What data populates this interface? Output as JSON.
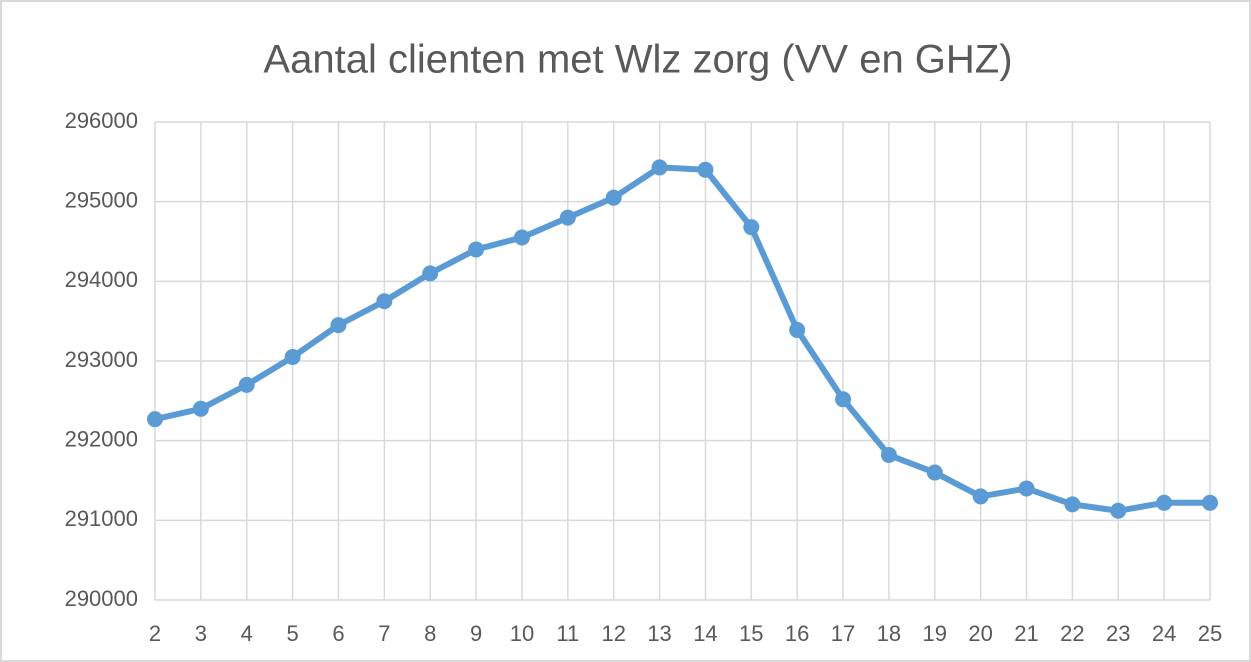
{
  "chart_data": {
    "type": "line",
    "title": "Aantal clienten met Wlz zorg (VV en GHZ)",
    "x": [
      2,
      3,
      4,
      5,
      6,
      7,
      8,
      9,
      10,
      11,
      12,
      13,
      14,
      15,
      16,
      17,
      18,
      19,
      20,
      21,
      22,
      23,
      24,
      25
    ],
    "series": [
      {
        "color": "#5b9bd5",
        "values": [
          292270,
          292400,
          292700,
          293050,
          293450,
          293750,
          294100,
          294400,
          294550,
          294800,
          295050,
          295430,
          295400,
          294680,
          293390,
          292520,
          291820,
          291600,
          291300,
          291400,
          291200,
          291120,
          291220,
          291220
        ]
      }
    ],
    "xlim": [
      2,
      25
    ],
    "xticks": [
      2,
      3,
      4,
      5,
      6,
      7,
      8,
      9,
      10,
      11,
      12,
      13,
      14,
      15,
      16,
      17,
      18,
      19,
      20,
      21,
      22,
      23,
      24,
      25
    ],
    "ylim": [
      290000,
      296000
    ],
    "yticks": [
      290000,
      291000,
      292000,
      293000,
      294000,
      295000,
      296000
    ],
    "grid": true
  }
}
